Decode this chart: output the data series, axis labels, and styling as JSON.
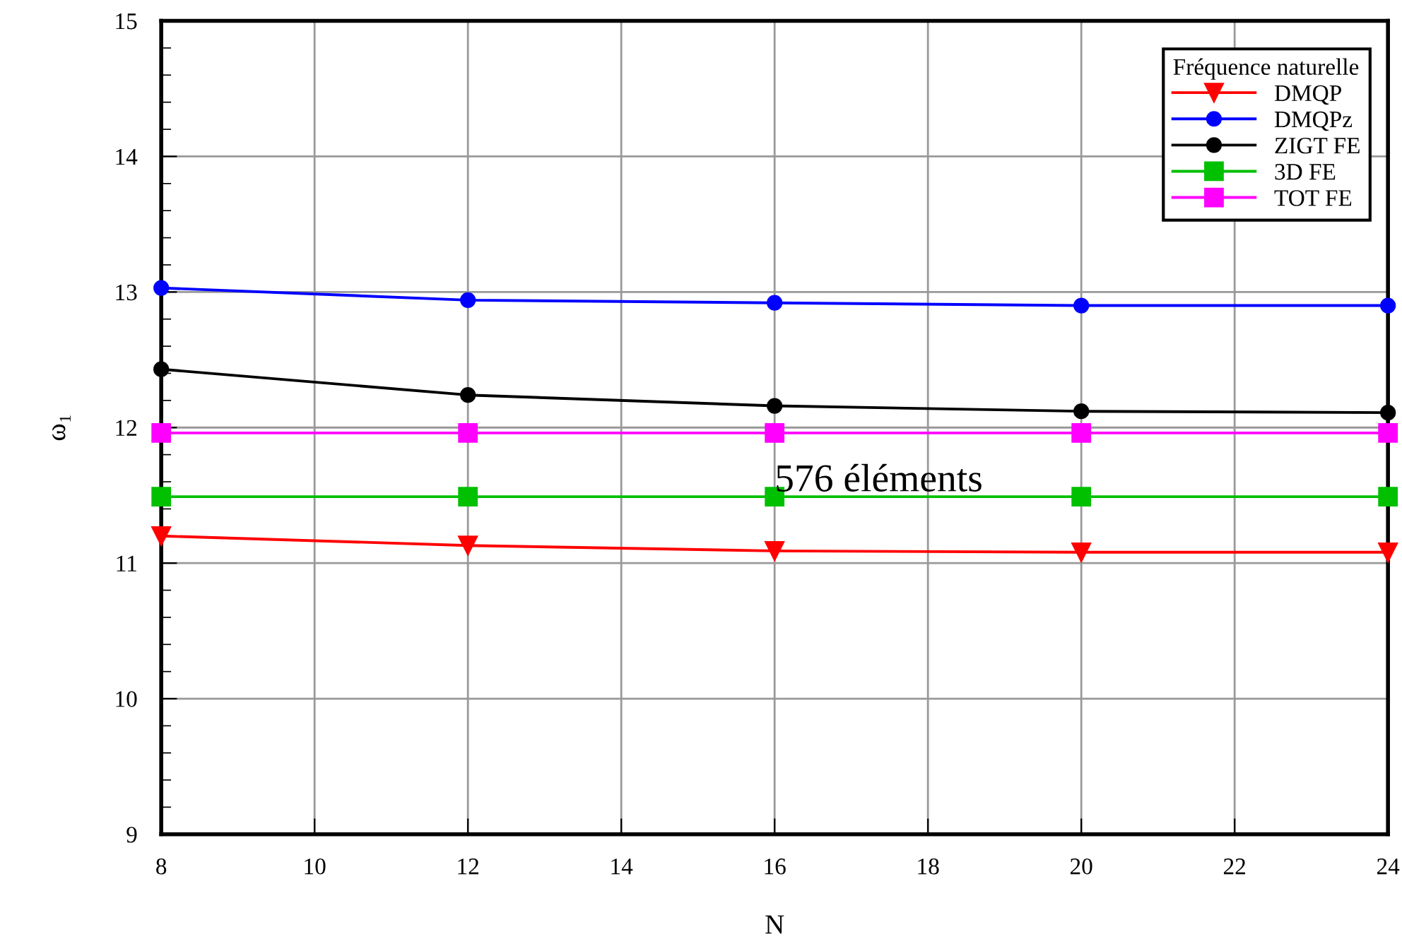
{
  "chart_data": {
    "type": "line",
    "xlabel": "N",
    "ylabel": "ω₁",
    "legend_title": "Fréquence naturelle",
    "legend": "top right",
    "grid": true,
    "x": [
      8,
      12,
      16,
      20,
      24
    ],
    "xlim": [
      8,
      24
    ],
    "xticks": [
      8,
      10,
      12,
      14,
      16,
      18,
      20,
      22,
      24
    ],
    "ylim": [
      9,
      15
    ],
    "yticks": [
      9,
      10,
      11,
      12,
      13,
      14,
      15
    ],
    "annotations": [
      {
        "text": "576 éléments",
        "x": 16,
        "y": 11.6
      }
    ],
    "series": [
      {
        "name": "DMQP",
        "color": "#ff0000",
        "marker": "triangle",
        "values": [
          11.2,
          11.13,
          11.09,
          11.08,
          11.08
        ]
      },
      {
        "name": "DMQPz",
        "color": "#0000ff",
        "marker": "circle",
        "values": [
          13.03,
          12.94,
          12.92,
          12.9,
          12.9
        ]
      },
      {
        "name": "ZIGT FE",
        "color": "#000000",
        "marker": "circle",
        "values": [
          12.43,
          12.24,
          12.16,
          12.12,
          12.11
        ]
      },
      {
        "name": "3D FE",
        "color": "#00c000",
        "marker": "square",
        "values": [
          11.49,
          11.49,
          11.49,
          11.49,
          11.49
        ]
      },
      {
        "name": "TOT FE",
        "color": "#ff00ff",
        "marker": "square",
        "values": [
          11.96,
          11.96,
          11.96,
          11.96,
          11.96
        ]
      }
    ]
  }
}
